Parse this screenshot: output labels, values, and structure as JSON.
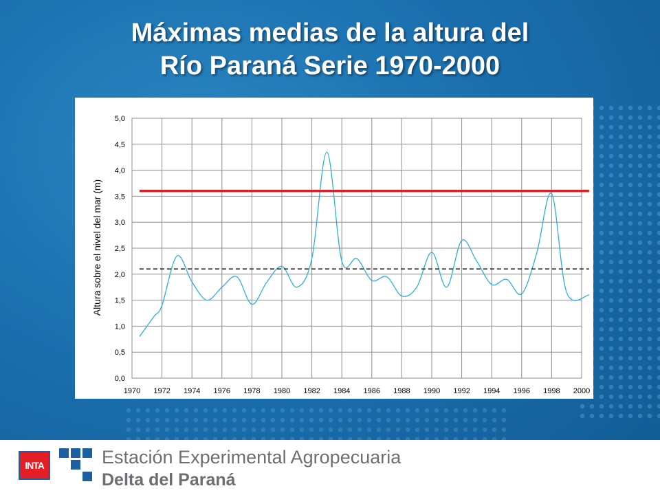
{
  "slide": {
    "title_line1": "Máximas medias de la altura del",
    "title_line2": "Río Paraná Serie 1970-2000"
  },
  "chart_data": {
    "type": "line",
    "title": "",
    "xlabel": "",
    "ylabel": "Altura sobre el nivel del mar (m)",
    "xlim": [
      1970,
      2000
    ],
    "ylim": [
      0,
      5
    ],
    "yticks": [
      "0,0",
      "0,5",
      "1,0",
      "1,5",
      "2,0",
      "2,5",
      "3,0",
      "3,5",
      "4,0",
      "4,5",
      "5,0"
    ],
    "xticks": [
      "1970",
      "1972",
      "1974",
      "1976",
      "1978",
      "1980",
      "1982",
      "1984",
      "1986",
      "1988",
      "1990",
      "1992",
      "1994",
      "1996",
      "1998",
      "2000"
    ],
    "grid": true,
    "series": [
      {
        "color": "#2bb0d8",
        "style": "smooth",
        "x": [
          1970.5,
          1971,
          1971.5,
          1972,
          1973,
          1974,
          1975,
          1976,
          1977,
          1978,
          1979,
          1980,
          1981,
          1982,
          1983,
          1984,
          1985,
          1986,
          1987,
          1988,
          1989,
          1990,
          1991,
          1992,
          1993,
          1994,
          1995,
          1996,
          1997,
          1998,
          1999,
          2000.5
        ],
        "values": [
          0.8,
          1.0,
          1.2,
          1.4,
          2.35,
          1.85,
          1.5,
          1.75,
          1.95,
          1.42,
          1.85,
          2.15,
          1.75,
          2.3,
          4.35,
          2.25,
          2.3,
          1.88,
          1.95,
          1.58,
          1.75,
          2.42,
          1.75,
          2.65,
          2.25,
          1.8,
          1.9,
          1.62,
          2.4,
          3.55,
          1.65,
          1.6
        ]
      },
      {
        "color": "#d42027",
        "style": "solid",
        "x": [
          1970.5,
          2000.5
        ],
        "values": [
          3.6,
          3.6
        ]
      },
      {
        "color": "#222222",
        "style": "dashed",
        "x": [
          1970.5,
          2000.5
        ],
        "values": [
          2.1,
          2.1
        ]
      }
    ]
  },
  "footer": {
    "inta_logo_text": "INTA",
    "org_line1": "Estación Experimental Agropecuaria",
    "org_line2": "Delta del Paraná",
    "logo_color": "#1d5fa0",
    "logo_red": "#e31e24"
  }
}
